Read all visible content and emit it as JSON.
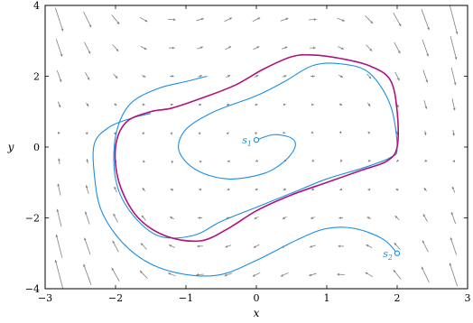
{
  "chart_data": {
    "type": "line",
    "title": "",
    "xlabel": "x",
    "ylabel": "y",
    "xlim": [
      -3,
      3
    ],
    "ylim": [
      -4,
      4
    ],
    "xticks": [
      -3,
      -2,
      -1,
      0,
      1,
      2,
      3
    ],
    "yticks": [
      -4,
      -2,
      0,
      2,
      4
    ],
    "xtick_labels": [
      "−3",
      "−2",
      "−1",
      "0",
      "1",
      "2",
      "3"
    ],
    "ytick_labels": [
      "−4",
      "−2",
      "0",
      "2",
      "4"
    ],
    "grid": false,
    "vector_field": {
      "system": "van der Pol (mu = 1): dx/dt = y, dy/dt = (1 - x^2) y - x",
      "color": "#808080"
    },
    "series": [
      {
        "color": "#1a8fe3",
        "points": [
          [
            0,
            0.2
          ],
          [
            0.25,
            0.35
          ],
          [
            0.5,
            0.25
          ],
          [
            0.55,
            0
          ],
          [
            0.4,
            -0.4
          ],
          [
            0.1,
            -0.75
          ],
          [
            -0.4,
            -0.9
          ],
          [
            -0.85,
            -0.65
          ],
          [
            -1.1,
            -0.1
          ],
          [
            -1.0,
            0.5
          ],
          [
            -0.6,
            1.0
          ],
          [
            0,
            1.45
          ],
          [
            0.4,
            1.85
          ],
          [
            0.8,
            2.3
          ],
          [
            1.2,
            2.35
          ],
          [
            1.6,
            2.1
          ],
          [
            1.9,
            1.2
          ],
          [
            2.0,
            0
          ],
          [
            1.9,
            -0.3
          ],
          [
            1.5,
            -0.6
          ],
          [
            1.0,
            -0.9
          ],
          [
            0.5,
            -1.3
          ],
          [
            0,
            -1.7
          ],
          [
            -0.5,
            -2.1
          ],
          [
            -0.9,
            -2.5
          ],
          [
            -1.4,
            -2.5
          ],
          [
            -1.8,
            -1.8
          ],
          [
            -2.0,
            -0.9
          ],
          [
            -2.0,
            0.3
          ],
          [
            -1.8,
            1.2
          ],
          [
            -1.4,
            1.65
          ],
          [
            -1.0,
            1.85
          ],
          [
            -0.7,
            2.0
          ]
        ]
      },
      {
        "color": "#1a8fe3",
        "points": [
          [
            2.0,
            -3.0
          ],
          [
            1.8,
            -2.6
          ],
          [
            1.4,
            -2.3
          ],
          [
            1.0,
            -2.3
          ],
          [
            0.6,
            -2.6
          ],
          [
            0,
            -3.2
          ],
          [
            -0.5,
            -3.6
          ],
          [
            -1.0,
            -3.6
          ],
          [
            -1.5,
            -3.3
          ],
          [
            -1.9,
            -2.7
          ],
          [
            -2.2,
            -1.8
          ],
          [
            -2.3,
            -0.8
          ],
          [
            -2.3,
            0.1
          ],
          [
            -2.1,
            0.55
          ],
          [
            -1.8,
            0.8
          ],
          [
            -1.5,
            0.95
          ]
        ]
      },
      {
        "color": "#b0127d",
        "points": [
          [
            -1.2,
            1.1
          ],
          [
            -0.75,
            1.4
          ],
          [
            -0.3,
            1.75
          ],
          [
            0.1,
            2.2
          ],
          [
            0.5,
            2.55
          ],
          [
            0.8,
            2.6
          ],
          [
            1.2,
            2.5
          ],
          [
            1.6,
            2.3
          ],
          [
            1.9,
            1.9
          ],
          [
            2.0,
            1.0
          ],
          [
            2.0,
            0
          ],
          [
            1.85,
            -0.4
          ],
          [
            1.5,
            -0.65
          ],
          [
            1.0,
            -1.0
          ],
          [
            0.5,
            -1.35
          ],
          [
            0,
            -1.8
          ],
          [
            -0.4,
            -2.3
          ],
          [
            -0.8,
            -2.65
          ],
          [
            -1.3,
            -2.5
          ],
          [
            -1.7,
            -1.95
          ],
          [
            -1.95,
            -1.0
          ],
          [
            -2.0,
            0
          ],
          [
            -1.85,
            0.7
          ],
          [
            -1.5,
            1.0
          ],
          [
            -1.2,
            1.1
          ]
        ]
      }
    ],
    "markers": [
      {
        "label": "s",
        "subscript": "1",
        "x": 0,
        "y": 0.2,
        "color": "#1a8fe3"
      },
      {
        "label": "s",
        "subscript": "2",
        "x": 2.0,
        "y": -3.0,
        "color": "#1a8fe3"
      }
    ]
  }
}
